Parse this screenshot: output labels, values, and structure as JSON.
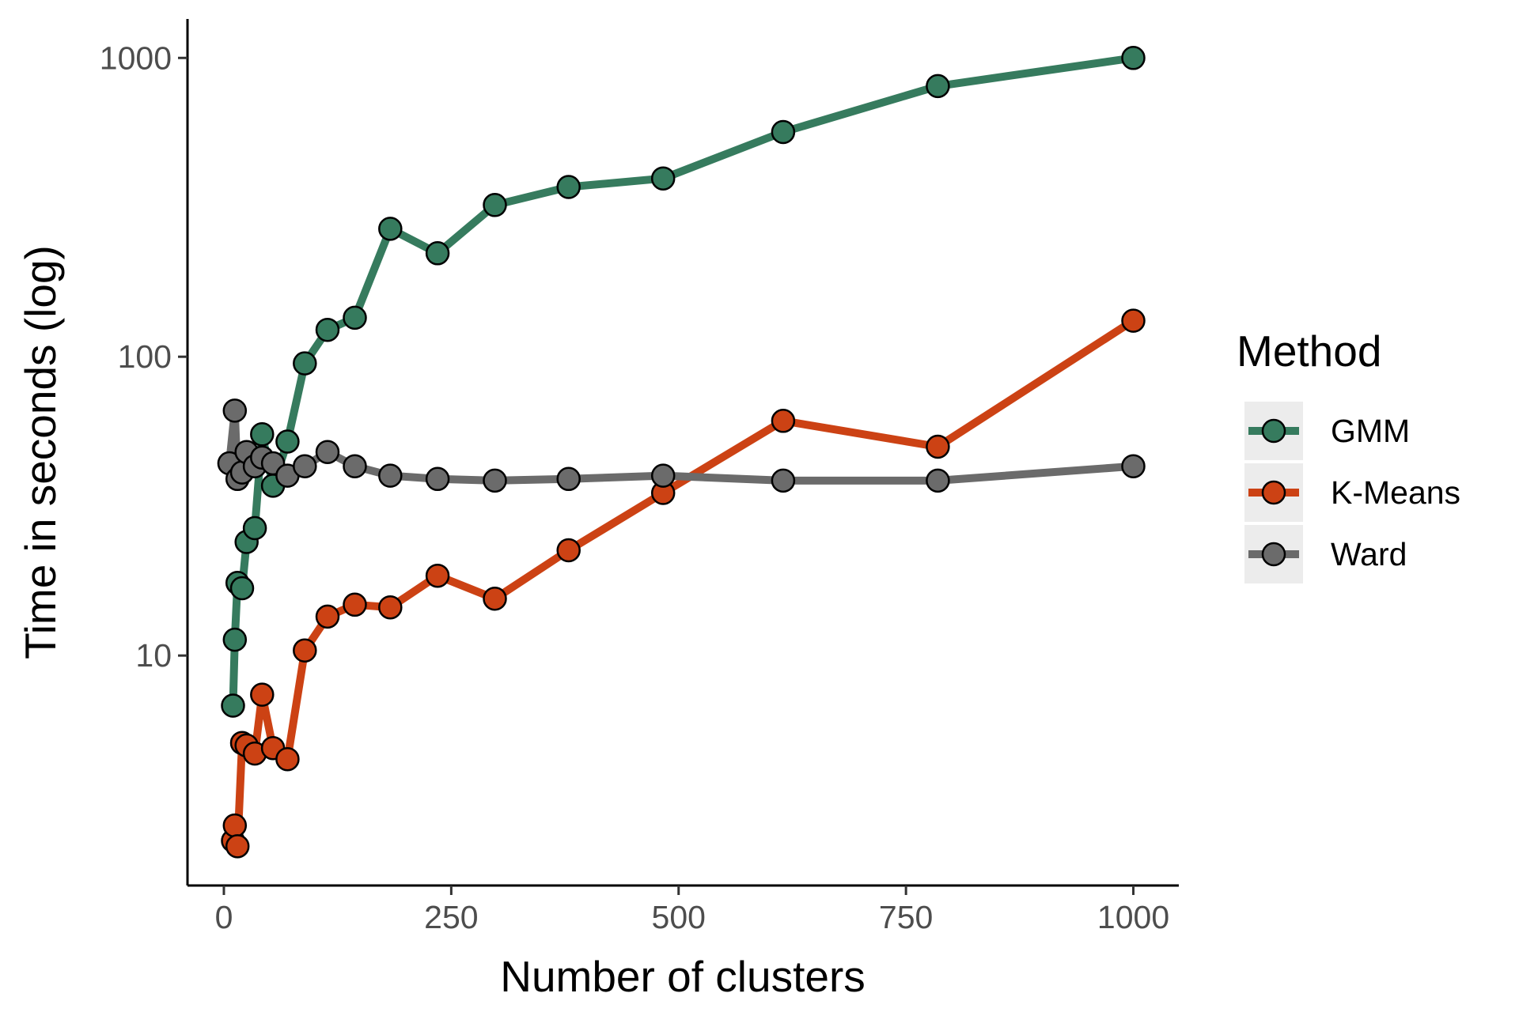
{
  "chart_data": {
    "type": "line",
    "xlabel": "Number of clusters",
    "ylabel": "Time in seconds (log)",
    "xlim": [
      -40,
      1050
    ],
    "ylim": [
      1.7,
      1350
    ],
    "yscale": "log",
    "xticks": [
      0,
      250,
      500,
      750,
      1000
    ],
    "xtick_labels": [
      "0",
      "250",
      "500",
      "750",
      "1000"
    ],
    "yticks": [
      10,
      100,
      1000
    ],
    "ytick_labels": [
      "10",
      "100",
      "1000"
    ],
    "grid": false,
    "legend": {
      "title": "Method",
      "position": "right"
    },
    "series": [
      {
        "name": "GMM",
        "color": "#367b5e",
        "points": [
          [
            10,
            6.8
          ],
          [
            12,
            11.3
          ],
          [
            15,
            17.5
          ],
          [
            20,
            16.8
          ],
          [
            25,
            24
          ],
          [
            34,
            26.7
          ],
          [
            42,
            55
          ],
          [
            54,
            37
          ],
          [
            70,
            52
          ],
          [
            89,
            95
          ],
          [
            114,
            123
          ],
          [
            144,
            135
          ],
          [
            183,
            268
          ],
          [
            235,
            222
          ],
          [
            298,
            322
          ],
          [
            379,
            370
          ],
          [
            483,
            395
          ],
          [
            615,
            565
          ],
          [
            785,
            805
          ],
          [
            1000,
            1000
          ]
        ]
      },
      {
        "name": "K-Means",
        "color": "#cc4214",
        "points": [
          [
            10,
            2.4
          ],
          [
            12,
            2.7
          ],
          [
            15,
            2.3
          ],
          [
            20,
            5.1
          ],
          [
            25,
            5.0
          ],
          [
            34,
            4.7
          ],
          [
            42,
            7.4
          ],
          [
            54,
            4.9
          ],
          [
            70,
            4.5
          ],
          [
            89,
            10.4
          ],
          [
            114,
            13.5
          ],
          [
            144,
            14.8
          ],
          [
            183,
            14.5
          ],
          [
            235,
            18.5
          ],
          [
            298,
            15.5
          ],
          [
            379,
            22.5
          ],
          [
            483,
            35
          ],
          [
            615,
            61
          ],
          [
            785,
            50
          ],
          [
            1000,
            132
          ]
        ]
      },
      {
        "name": "Ward",
        "color": "#6b6b6b",
        "points": [
          [
            6,
            44
          ],
          [
            12,
            66
          ],
          [
            15,
            39
          ],
          [
            20,
            41
          ],
          [
            25,
            48
          ],
          [
            34,
            43
          ],
          [
            42,
            46
          ],
          [
            54,
            44
          ],
          [
            70,
            40
          ],
          [
            89,
            43
          ],
          [
            114,
            48
          ],
          [
            144,
            43
          ],
          [
            183,
            40
          ],
          [
            235,
            39
          ],
          [
            298,
            38.5
          ],
          [
            379,
            39
          ],
          [
            483,
            40
          ],
          [
            615,
            38.5
          ],
          [
            785,
            38.5
          ],
          [
            1000,
            43
          ]
        ]
      }
    ]
  }
}
